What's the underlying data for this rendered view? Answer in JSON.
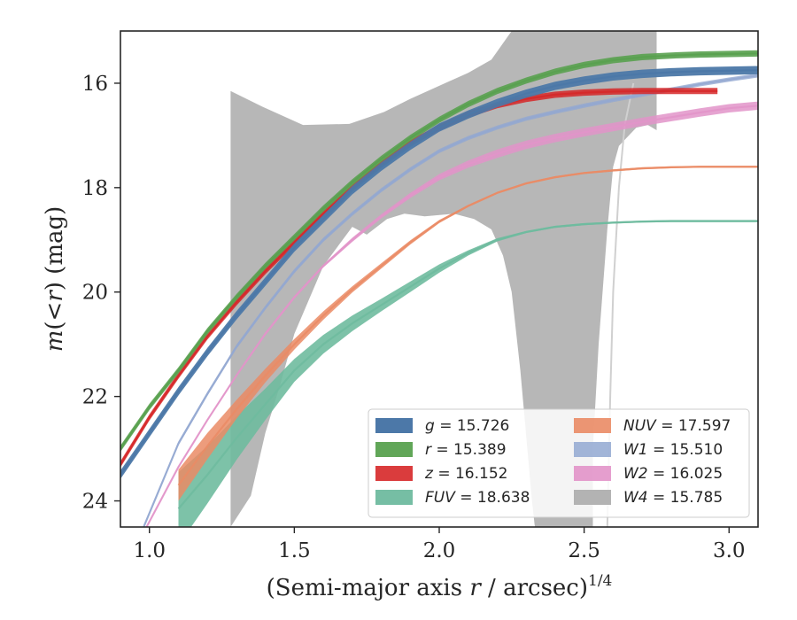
{
  "chart_data": {
    "type": "line",
    "title": "",
    "xlabel": "(Semi-major axis r / arcsec)^{1/4}",
    "xlabel_parts": {
      "prefix": "(Semi-major axis ",
      "var": "r",
      "suffix": " / arcsec)",
      "sup": "1/4"
    },
    "ylabel": "m(<r) (mag)",
    "ylabel_parts": {
      "m": "m",
      "open": "(",
      "lt": "<",
      "r": "r",
      "close": ")",
      "unit": " (mag)"
    },
    "xlim": [
      0.9,
      3.1
    ],
    "ylim": [
      24.5,
      15.0
    ],
    "y_inverted": true,
    "xticks": [
      1.0,
      1.5,
      2.0,
      2.5,
      3.0
    ],
    "xtick_labels": [
      "1.0",
      "1.5",
      "2.0",
      "2.5",
      "3.0"
    ],
    "yticks": [
      16,
      18,
      20,
      22,
      24
    ],
    "ytick_labels": [
      "16",
      "18",
      "20",
      "22",
      "24"
    ],
    "grid": false,
    "legend_position": "lower-right",
    "series": [
      {
        "band": "g",
        "value": "15.726",
        "color": "#4c78a8",
        "alpha": 0.95,
        "x": [
          0.9,
          1.0,
          1.1,
          1.2,
          1.3,
          1.4,
          1.5,
          1.6,
          1.7,
          1.8,
          1.9,
          2.0,
          2.1,
          2.2,
          2.3,
          2.4,
          2.5,
          2.6,
          2.7,
          2.8,
          2.9,
          3.0,
          3.1
        ],
        "y": [
          23.5,
          22.7,
          21.9,
          21.15,
          20.45,
          19.8,
          19.15,
          18.6,
          18.05,
          17.6,
          17.2,
          16.85,
          16.6,
          16.38,
          16.2,
          16.05,
          15.95,
          15.87,
          15.82,
          15.79,
          15.77,
          15.76,
          15.75
        ],
        "band_width": 0.08
      },
      {
        "band": "r",
        "value": "15.389",
        "color": "#59a14f",
        "alpha": 0.9,
        "x": [
          0.9,
          1.0,
          1.1,
          1.2,
          1.3,
          1.4,
          1.5,
          1.6,
          1.7,
          1.8,
          1.9,
          2.0,
          2.1,
          2.2,
          2.3,
          2.4,
          2.5,
          2.6,
          2.7,
          2.8,
          2.9,
          3.0,
          3.1
        ],
        "y": [
          23.0,
          22.2,
          21.5,
          20.75,
          20.1,
          19.5,
          18.95,
          18.4,
          17.9,
          17.45,
          17.05,
          16.7,
          16.4,
          16.15,
          15.95,
          15.78,
          15.65,
          15.56,
          15.5,
          15.47,
          15.45,
          15.44,
          15.43
        ],
        "band_width": 0.06
      },
      {
        "band": "z",
        "value": "16.152",
        "color": "#d62728",
        "alpha": 0.85,
        "x": [
          0.9,
          1.0,
          1.1,
          1.2,
          1.3,
          1.4,
          1.5,
          1.6,
          1.7,
          1.8,
          1.9,
          2.0,
          2.1,
          2.2,
          2.3,
          2.4,
          2.5,
          2.6,
          2.7,
          2.8,
          2.9,
          2.96
        ],
        "y": [
          23.3,
          22.4,
          21.6,
          20.85,
          20.2,
          19.6,
          19.05,
          18.5,
          18.0,
          17.55,
          17.15,
          16.85,
          16.6,
          16.42,
          16.3,
          16.22,
          16.18,
          16.16,
          16.15,
          16.15,
          16.15,
          16.15
        ],
        "band_width": 0.06
      },
      {
        "band": "FUV",
        "value": "18.638",
        "color": "#6fbb9f",
        "alpha": 0.9,
        "x": [
          1.1,
          1.2,
          1.3,
          1.4,
          1.5,
          1.6,
          1.7,
          1.8,
          1.9,
          2.0,
          2.1,
          2.2,
          2.3,
          2.4,
          2.5,
          2.6,
          2.7,
          2.8,
          2.9,
          3.0,
          3.1
        ],
        "y": [
          24.15,
          23.5,
          22.8,
          22.15,
          21.5,
          21.0,
          20.6,
          20.25,
          19.9,
          19.55,
          19.25,
          19.0,
          18.85,
          18.75,
          18.7,
          18.67,
          18.65,
          18.64,
          18.64,
          18.64,
          18.64
        ],
        "band_width": [
          0.7,
          0.55,
          0.42,
          0.3,
          0.22,
          0.18,
          0.15,
          0.12,
          0.1,
          0.08,
          0.05,
          0.03,
          0.02,
          0.02,
          0.02,
          0.02,
          0.02,
          0.02,
          0.02,
          0.02,
          0.02
        ]
      },
      {
        "band": "NUV",
        "value": "17.597",
        "color": "#ea8b65",
        "alpha": 0.85,
        "x": [
          1.1,
          1.2,
          1.3,
          1.4,
          1.5,
          1.6,
          1.7,
          1.8,
          1.9,
          2.0,
          2.1,
          2.2,
          2.3,
          2.4,
          2.5,
          2.6,
          2.7,
          2.8,
          2.9,
          3.0,
          3.1
        ],
        "y": [
          23.7,
          22.95,
          22.25,
          21.6,
          21.0,
          20.45,
          19.95,
          19.5,
          19.05,
          18.65,
          18.35,
          18.1,
          17.92,
          17.8,
          17.72,
          17.67,
          17.63,
          17.61,
          17.6,
          17.6,
          17.6
        ],
        "band_width": [
          0.3,
          0.25,
          0.18,
          0.13,
          0.1,
          0.08,
          0.06,
          0.05,
          0.04,
          0.03,
          0.02,
          0.02,
          0.02,
          0.02,
          0.02,
          0.02,
          0.02,
          0.02,
          0.02,
          0.02,
          0.02
        ]
      },
      {
        "band": "W1",
        "value": "15.510",
        "color": "#92a8d1",
        "alpha": 0.8,
        "x": [
          0.98,
          1.1,
          1.2,
          1.3,
          1.4,
          1.5,
          1.6,
          1.7,
          1.8,
          1.9,
          2.0,
          2.1,
          2.2,
          2.3,
          2.4,
          2.5,
          2.6,
          2.7,
          2.8,
          2.9,
          3.0,
          3.1
        ],
        "y": [
          24.5,
          22.9,
          21.95,
          21.05,
          20.3,
          19.6,
          19.0,
          18.5,
          18.05,
          17.65,
          17.3,
          17.05,
          16.85,
          16.68,
          16.55,
          16.43,
          16.32,
          16.22,
          16.12,
          16.02,
          15.93,
          15.85
        ],
        "band_width": 0.04
      },
      {
        "band": "W2",
        "value": "16.025",
        "color": "#e294c9",
        "alpha": 0.85,
        "x": [
          0.99,
          1.1,
          1.2,
          1.3,
          1.4,
          1.5,
          1.6,
          1.7,
          1.8,
          1.9,
          2.0,
          2.1,
          2.2,
          2.3,
          2.4,
          2.5,
          2.6,
          2.7,
          2.8,
          2.9,
          3.0,
          3.1
        ],
        "y": [
          24.5,
          23.35,
          22.45,
          21.6,
          20.8,
          20.1,
          19.5,
          19.0,
          18.55,
          18.15,
          17.8,
          17.55,
          17.35,
          17.18,
          17.05,
          16.94,
          16.84,
          16.74,
          16.65,
          16.56,
          16.48,
          16.43
        ],
        "band_width": [
          0.02,
          0.02,
          0.02,
          0.02,
          0.03,
          0.03,
          0.03,
          0.04,
          0.04,
          0.05,
          0.06,
          0.07,
          0.08,
          0.08,
          0.08,
          0.08,
          0.08,
          0.08,
          0.08,
          0.08,
          0.08,
          0.08
        ]
      },
      {
        "band": "W4",
        "value": "15.785",
        "color": "#b3b3b3",
        "alpha": 0.95,
        "region_upper": {
          "x": [
            1.28,
            1.28,
            1.39,
            1.53,
            1.69,
            1.81,
            1.9,
            2.0,
            2.1,
            2.18,
            2.25,
            2.28,
            2.52,
            2.6,
            2.75,
            2.75
          ],
          "y": [
            24.5,
            16.15,
            16.45,
            16.8,
            16.78,
            16.55,
            16.3,
            16.05,
            15.8,
            15.55,
            15.0,
            15.0,
            15.0,
            15.0,
            15.0,
            16.9
          ]
        },
        "region_lower": {
          "x": [
            2.75,
            2.72,
            2.68,
            2.62,
            2.6,
            2.58,
            2.55,
            2.53,
            2.53,
            2.33,
            2.32,
            2.28,
            2.25,
            2.22,
            2.18,
            2.12,
            2.05,
            1.95,
            1.88,
            1.82,
            1.75,
            1.7,
            1.6,
            1.5,
            1.45,
            1.4,
            1.35,
            1.28
          ],
          "y": [
            16.9,
            16.8,
            16.85,
            17.2,
            17.6,
            18.8,
            21.0,
            23.0,
            24.5,
            24.5,
            24.0,
            21.5,
            20.0,
            19.3,
            18.8,
            18.6,
            18.5,
            18.55,
            18.5,
            18.6,
            18.9,
            18.75,
            19.5,
            20.8,
            21.8,
            22.7,
            23.9,
            24.5
          ]
        },
        "trace_x": [
          2.58,
          2.59,
          2.6,
          2.61,
          2.62,
          2.64,
          2.67
        ],
        "trace_y": [
          24.5,
          22.0,
          20.0,
          19.0,
          18.0,
          16.8,
          16.0
        ]
      }
    ]
  }
}
